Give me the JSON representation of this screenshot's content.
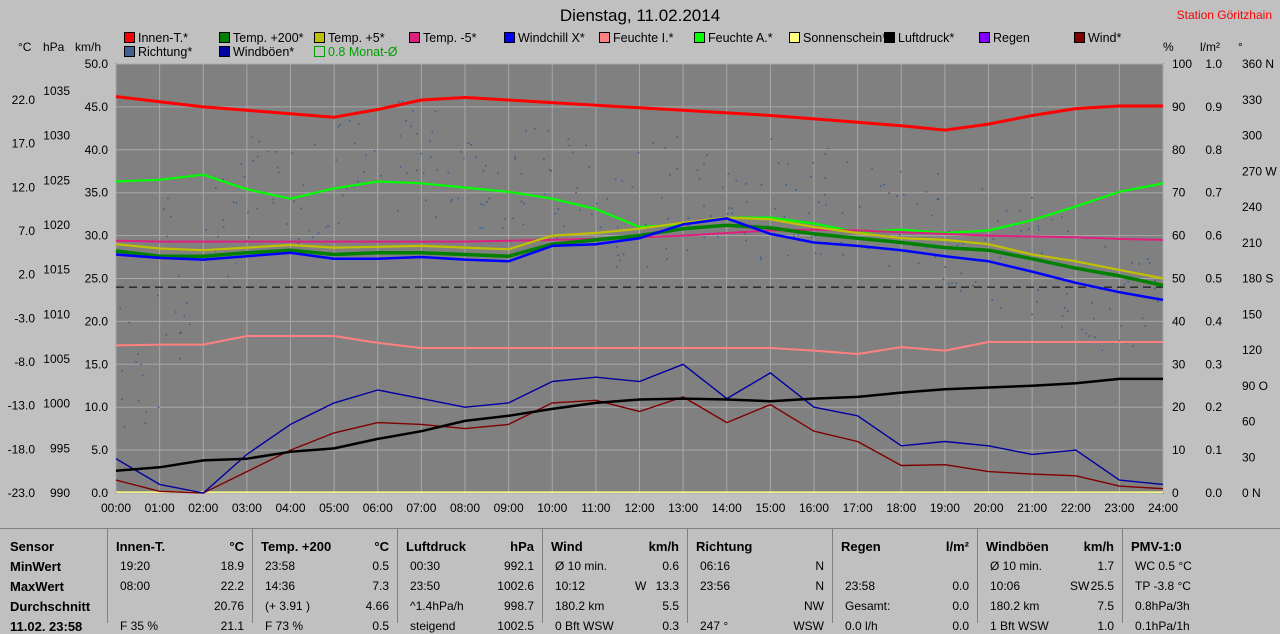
{
  "header": {
    "title": "Dienstag, 11.02.2014",
    "station": "Station Göritzhain"
  },
  "legend": [
    {
      "label": "Innen-T.*",
      "color": "#ff0000"
    },
    {
      "label": "Temp. +200*",
      "color": "#008000"
    },
    {
      "label": "Temp. +5*",
      "color": "#c0c000"
    },
    {
      "label": "Temp. -5*",
      "color": "#e0207f"
    },
    {
      "label": "Windchill X*",
      "color": "#0000ff"
    },
    {
      "label": "Feuchte I.*",
      "color": "#ff8080"
    },
    {
      "label": "Feuchte A.*",
      "color": "#00ff00"
    },
    {
      "label": "Sonnenschein*",
      "color": "#ffff80"
    },
    {
      "label": "Luftdruck*",
      "color": "#000000"
    },
    {
      "label": "Regen",
      "color": "#8000ff"
    },
    {
      "label": "Wind*",
      "color": "#800000"
    },
    {
      "label": "Richtung*",
      "color": "#406090"
    },
    {
      "label": "Windböen*",
      "color": "#0000a0"
    },
    {
      "label": "0.8 Monat-Ø",
      "color": "#00a000"
    }
  ],
  "units": {
    "celsius": "°C",
    "hpa": "hPa",
    "kmh": "km/h",
    "percent": "%",
    "rain": "l/m²",
    "deg": "°"
  },
  "chart_data": {
    "type": "line",
    "title": "Dienstag, 11.02.2014",
    "x_ticks": [
      "00:00",
      "01:00",
      "02:00",
      "03:00",
      "04:00",
      "05:00",
      "06:00",
      "07:00",
      "08:00",
      "09:00",
      "10:00",
      "11:00",
      "12:00",
      "13:00",
      "14:00",
      "15:00",
      "16:00",
      "17:00",
      "18:00",
      "19:00",
      "20:00",
      "21:00",
      "22:00",
      "23:00",
      "24:00"
    ],
    "y_axes": {
      "celsius": [
        "22.0",
        "17.0",
        "12.0",
        "7.0",
        "2.0",
        "-3.0",
        "-8.0",
        "-13.0",
        "-18.0",
        "-23.0"
      ],
      "hpa": [
        "1035",
        "1030",
        "1025",
        "1020",
        "1015",
        "1010",
        "1005",
        "1000",
        "995",
        "990"
      ],
      "kmh": [
        "50.0",
        "45.0",
        "40.0",
        "35.0",
        "30.0",
        "25.0",
        "20.0",
        "15.0",
        "10.0",
        "5.0",
        "0.0"
      ],
      "percent": [
        "100",
        "90",
        "80",
        "70",
        "60",
        "50",
        "40",
        "30",
        "20",
        "10",
        "0"
      ],
      "rain": [
        "1.0",
        "0.9",
        "0.8",
        "0.7",
        "0.6",
        "0.5",
        "0.4",
        "0.3",
        "0.2",
        "0.1",
        "0.0"
      ],
      "direction": [
        "360 N",
        "330",
        "300",
        "270 W",
        "240",
        "210",
        "180 S",
        "150",
        "120",
        "90 O",
        "60",
        "30",
        "0 N"
      ]
    },
    "y_range_kmh": [
      0,
      50
    ],
    "grid": true,
    "hours": [
      0,
      1,
      2,
      3,
      4,
      5,
      6,
      7,
      8,
      9,
      10,
      11,
      12,
      13,
      14,
      15,
      16,
      17,
      18,
      19,
      20,
      21,
      22,
      23,
      24
    ],
    "series": [
      {
        "name": "Innen-T.*",
        "axis": "kmh",
        "values": [
          46.2,
          45.6,
          45.0,
          44.6,
          44.2,
          43.8,
          44.7,
          45.8,
          46.1,
          45.8,
          45.5,
          45.2,
          44.9,
          44.6,
          44.3,
          44.0,
          43.6,
          43.2,
          42.8,
          42.3,
          43.0,
          44.0,
          44.8,
          45.1,
          45.1
        ]
      },
      {
        "name": "Feuchte A.*",
        "axis": "kmh",
        "values": [
          36.3,
          36.5,
          37.1,
          35.4,
          34.3,
          35.5,
          36.3,
          36.1,
          35.6,
          35.1,
          34.3,
          33.1,
          31.0,
          31.3,
          32.1,
          32.1,
          31.4,
          30.4,
          30.7,
          30.3,
          30.6,
          31.8,
          33.4,
          35.1,
          36.1
        ]
      },
      {
        "name": "Temp. +5*",
        "axis": "kmh",
        "values": [
          29.0,
          28.5,
          28.3,
          28.6,
          28.9,
          28.6,
          28.7,
          28.8,
          28.6,
          28.4,
          30.0,
          30.3,
          30.8,
          31.5,
          32.1,
          31.9,
          31.0,
          30.3,
          29.7,
          29.5,
          29.0,
          27.8,
          27.0,
          26.0,
          25.0
        ]
      },
      {
        "name": "Temp. +200*",
        "axis": "kmh",
        "values": [
          28.2,
          27.6,
          27.6,
          28.0,
          28.3,
          27.8,
          28.0,
          28.0,
          27.8,
          27.6,
          29.0,
          29.5,
          30.0,
          30.8,
          31.2,
          30.9,
          30.2,
          29.7,
          29.2,
          28.6,
          28.3,
          27.3,
          26.2,
          25.3,
          24.2
        ]
      },
      {
        "name": "Windchill X*",
        "axis": "kmh",
        "values": [
          27.8,
          27.4,
          27.2,
          27.6,
          28.0,
          27.3,
          27.3,
          27.5,
          27.2,
          27.0,
          28.8,
          29.0,
          29.7,
          31.3,
          32.0,
          30.2,
          29.2,
          28.8,
          28.3,
          27.6,
          27.0,
          25.8,
          24.5,
          23.4,
          22.5
        ]
      },
      {
        "name": "Temp. -5*",
        "axis": "kmh",
        "values": [
          29.4,
          29.3,
          29.3,
          29.3,
          29.3,
          29.3,
          29.3,
          29.3,
          29.3,
          29.4,
          29.5,
          29.6,
          29.8,
          30.0,
          30.3,
          30.6,
          30.7,
          30.6,
          30.4,
          30.2,
          30.0,
          29.9,
          29.8,
          29.6,
          29.5
        ]
      },
      {
        "name": "Feuchte I.*",
        "axis": "kmh",
        "values": [
          17.2,
          17.3,
          17.3,
          18.3,
          18.3,
          18.3,
          17.5,
          16.9,
          16.9,
          16.9,
          16.9,
          16.9,
          16.9,
          16.9,
          16.9,
          16.9,
          16.6,
          16.2,
          17.0,
          16.6,
          17.6,
          17.6,
          17.6,
          17.6,
          17.6
        ]
      },
      {
        "name": "Luftdruck*",
        "axis": "kmh",
        "values": [
          2.6,
          3.0,
          3.8,
          4.0,
          4.8,
          5.2,
          6.3,
          7.2,
          8.4,
          9.0,
          9.8,
          10.5,
          10.9,
          11.0,
          10.9,
          10.7,
          11.0,
          11.2,
          11.7,
          12.1,
          12.3,
          12.5,
          12.8,
          13.3,
          13.3
        ]
      },
      {
        "name": "Windböen*",
        "axis": "kmh",
        "values": [
          4.0,
          1.0,
          0.0,
          4.5,
          8.0,
          10.5,
          12.0,
          11.0,
          10.0,
          10.5,
          13.0,
          13.5,
          13.0,
          15.0,
          11.0,
          14.0,
          10.0,
          9.0,
          5.5,
          6.0,
          5.5,
          4.5,
          5.0,
          1.5,
          1.0
        ]
      },
      {
        "name": "Wind*",
        "axis": "kmh",
        "values": [
          1.5,
          0.2,
          0.0,
          2.5,
          5.0,
          7.0,
          8.2,
          8.0,
          7.5,
          8.0,
          10.5,
          10.8,
          9.5,
          11.2,
          8.2,
          10.3,
          7.2,
          6.0,
          3.2,
          3.3,
          2.5,
          2.2,
          2.0,
          0.8,
          0.5
        ]
      },
      {
        "name": "0.8 Monat-Ø",
        "axis": "kmh",
        "values": [
          24.0,
          24.0,
          24.0,
          24.0,
          24.0,
          24.0,
          24.0,
          24.0,
          24.0,
          24.0,
          24.0,
          24.0,
          24.0,
          24.0,
          24.0,
          24.0,
          24.0,
          24.0,
          24.0,
          24.0,
          24.0,
          24.0,
          24.0,
          24.0,
          24.0
        ]
      },
      {
        "name": "Sonnenschein*",
        "axis": "kmh",
        "values": [
          0.1,
          0.1,
          0.1,
          0.1,
          0.1,
          0.1,
          0.1,
          0.1,
          0.1,
          0.1,
          0.1,
          0.1,
          0.1,
          0.1,
          0.1,
          0.1,
          0.1,
          0.1,
          0.1,
          0.1,
          0.1,
          0.1,
          0.1,
          0.1,
          0.1
        ]
      }
    ],
    "direction_scatter": {
      "name": "Richtung*",
      "axis": "direction_deg",
      "band_by_hour": [
        [
          50,
          170
        ],
        [
          100,
          250
        ],
        [
          180,
          280
        ],
        [
          200,
          300
        ],
        [
          210,
          310
        ],
        [
          220,
          320
        ],
        [
          230,
          330
        ],
        [
          230,
          330
        ],
        [
          220,
          320
        ],
        [
          210,
          310
        ],
        [
          200,
          300
        ],
        [
          190,
          300
        ],
        [
          190,
          300
        ],
        [
          190,
          290
        ],
        [
          190,
          290
        ],
        [
          190,
          300
        ],
        [
          200,
          290
        ],
        [
          190,
          280
        ],
        [
          180,
          270
        ],
        [
          160,
          260
        ],
        [
          150,
          250
        ],
        [
          140,
          240
        ],
        [
          120,
          220
        ],
        [
          110,
          200
        ],
        [
          110,
          200
        ]
      ]
    }
  },
  "table": {
    "row_labels": [
      "Sensor",
      "MinWert",
      "MaxWert",
      "Durchschnitt",
      "11.02. 23:58"
    ],
    "columns": [
      {
        "name": "Innen-T.",
        "unit": "°C",
        "rows": [
          [
            "19:20",
            "",
            "18.9"
          ],
          [
            "08:00",
            "",
            "22.2"
          ],
          [
            "",
            "",
            "20.76"
          ],
          [
            "F 35 %",
            "",
            "21.1"
          ]
        ]
      },
      {
        "name": "Temp. +200",
        "unit": "°C",
        "rows": [
          [
            "23:58",
            "",
            "0.5"
          ],
          [
            "14:36",
            "",
            "7.3"
          ],
          [
            "(+ 3.91 )",
            "",
            "4.66"
          ],
          [
            "F 73 %",
            "",
            "0.5"
          ]
        ]
      },
      {
        "name": "Luftdruck",
        "unit": "hPa",
        "rows": [
          [
            "00:30",
            "",
            "992.1"
          ],
          [
            "23:50",
            "",
            "1002.6"
          ],
          [
            "^1.4hPa/h",
            "",
            "998.7"
          ],
          [
            "steigend",
            "",
            "1002.5"
          ]
        ]
      },
      {
        "name": "Wind",
        "unit": "km/h",
        "rows": [
          [
            "Ø 10 min.",
            "",
            "0.6"
          ],
          [
            "10:12",
            "W",
            "13.3"
          ],
          [
            "180.2 km",
            "",
            "5.5"
          ],
          [
            "0 Bft WSW",
            "",
            "0.3"
          ]
        ]
      },
      {
        "name": "Richtung",
        "unit": "",
        "rows": [
          [
            "06:16",
            "",
            "N"
          ],
          [
            "23:56",
            "",
            "N"
          ],
          [
            "",
            "",
            "NW"
          ],
          [
            "247 °",
            "",
            "WSW"
          ]
        ]
      },
      {
        "name": "Regen",
        "unit": "l/m²",
        "rows": [
          [
            "",
            "",
            ""
          ],
          [
            "23:58",
            "",
            "0.0"
          ],
          [
            "Gesamt:",
            "",
            "0.0"
          ],
          [
            "0.0 l/h",
            "",
            "0.0"
          ]
        ]
      },
      {
        "name": "Windböen",
        "unit": "km/h",
        "rows": [
          [
            "Ø 10 min.",
            "",
            "1.7"
          ],
          [
            "10:06",
            "SW",
            "25.5"
          ],
          [
            "180.2 km",
            "",
            "7.5"
          ],
          [
            "1 Bft WSW",
            "",
            "1.0"
          ]
        ]
      },
      {
        "name": "PMV-1:0",
        "unit": "",
        "rows": [
          [
            "WC 0.5 °C",
            "",
            ""
          ],
          [
            "TP -3.8 °C",
            "",
            ""
          ],
          [
            "0.8hPa/3h",
            "",
            ""
          ],
          [
            "0.1hPa/1h",
            "",
            ""
          ]
        ]
      }
    ]
  }
}
